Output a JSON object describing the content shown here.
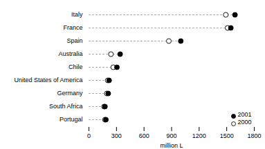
{
  "chart_data": {
    "type": "dot",
    "categories": [
      "Italy",
      "France",
      "Spain",
      "Australia",
      "Chile",
      "United States of America",
      "Germany",
      "South Africa",
      "Portugal"
    ],
    "series": [
      {
        "name": "2001",
        "color": "#000000",
        "values": [
          1590,
          1545,
          1000,
          340,
          305,
          220,
          210,
          175,
          185
        ]
      },
      {
        "name": "2000",
        "color": "#ffffff",
        "values": [
          1490,
          1510,
          870,
          240,
          265,
          205,
          195,
          165,
          175
        ]
      }
    ],
    "xlabel": "million L",
    "xlim": [
      0,
      1800
    ],
    "xticks": [
      0,
      300,
      600,
      900,
      1200,
      1500,
      1800
    ],
    "line_style": "dashed",
    "legend": "lower right"
  }
}
